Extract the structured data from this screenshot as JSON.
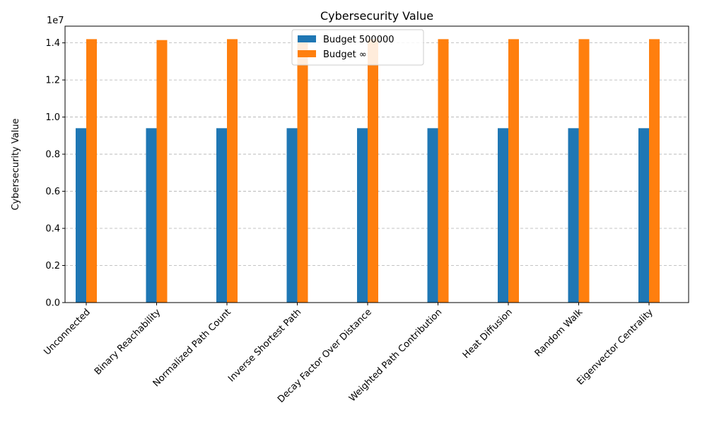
{
  "chart_data": {
    "type": "bar",
    "title": "Cybersecurity Value",
    "xlabel": "",
    "ylabel": "Cybersecurity Value",
    "offset_label": "1e7",
    "categories": [
      "Unconnected",
      "Binary Reachability",
      "Normalized Path Count",
      "Inverse Shortest Path",
      "Decay Factor Over Distance",
      "Weighted Path Contribution",
      "Heat Diffusion",
      "Random Walk",
      "Eigenvector Centrality"
    ],
    "series": [
      {
        "name": "Budget 500000",
        "color": "#1f77b4",
        "values": [
          9400000,
          9400000,
          9400000,
          9400000,
          9400000,
          9400000,
          9400000,
          9400000,
          9400000
        ]
      },
      {
        "name": "Budget ∞",
        "color": "#ff7f0e",
        "values": [
          14200000,
          14150000,
          14200000,
          14200000,
          14200000,
          14200000,
          14200000,
          14200000,
          14200000
        ]
      }
    ],
    "ylim": [
      0,
      14900000
    ],
    "yticks": [
      0,
      2000000,
      4000000,
      6000000,
      8000000,
      10000000,
      12000000,
      14000000
    ],
    "ytick_labels": [
      "0.0",
      "0.2",
      "0.4",
      "0.6",
      "0.8",
      "1.0",
      "1.2",
      "1.4"
    ],
    "grid": "horizontal dashed",
    "legend_position": "top-center"
  }
}
